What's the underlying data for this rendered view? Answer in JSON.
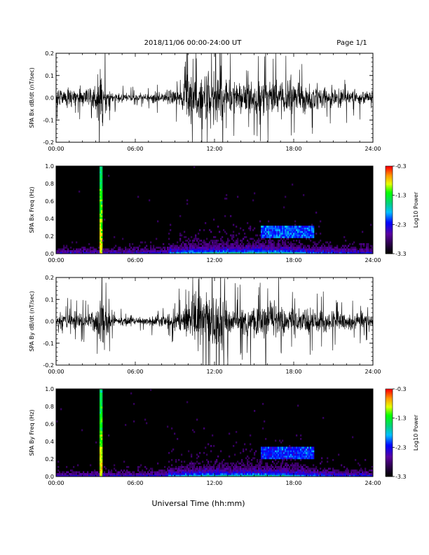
{
  "header": {
    "title": "2018/11/06  00:00-24:00 UT",
    "page": "Page 1/1"
  },
  "x_axis_title": "Universal Time (hh:mm)",
  "chart_data": [
    {
      "type": "line",
      "panel": "bx-timeseries",
      "ylabel": "SPA Bx dB/dt (nT/sec)",
      "xlim_hours": [
        0,
        24
      ],
      "ylim": [
        -0.2,
        0.2
      ],
      "x_tick_labels": [
        "00:00",
        "06:00",
        "12:00",
        "18:00",
        "24:00"
      ],
      "y_tick_labels": [
        "-0.2",
        "-0.1",
        "0.0",
        "0.1",
        "0.2"
      ],
      "y_tick_values": [
        -0.2,
        -0.1,
        0.0,
        0.1,
        0.2
      ],
      "series_color": "#000000",
      "envelope": {
        "hour": [
          0,
          1,
          2,
          3,
          3.3,
          3.5,
          4.2,
          5,
          6,
          7,
          8,
          9,
          9.5,
          10,
          11,
          12,
          12.7,
          13,
          14,
          15,
          16,
          17,
          18,
          19,
          20,
          21,
          22,
          23,
          24
        ],
        "amplitude": [
          0.06,
          0.08,
          0.06,
          0.09,
          0.22,
          0.22,
          0.05,
          0.035,
          0.03,
          0.035,
          0.045,
          0.06,
          0.09,
          0.2,
          0.22,
          0.22,
          0.22,
          0.12,
          0.12,
          0.14,
          0.15,
          0.14,
          0.12,
          0.1,
          0.09,
          0.08,
          0.07,
          0.06,
          0.05
        ]
      }
    },
    {
      "type": "heatmap",
      "panel": "bx-spectrogram",
      "ylabel": "SPA Bx Freq (Hz)",
      "xlim_hours": [
        0,
        24
      ],
      "ylim": [
        0.0,
        1.0
      ],
      "x_tick_labels": [
        "00:00",
        "06:00",
        "12:00",
        "18:00",
        "24:00"
      ],
      "y_tick_labels": [
        "0.0",
        "0.2",
        "0.4",
        "0.6",
        "0.8",
        "1.0"
      ],
      "y_tick_values": [
        0.0,
        0.2,
        0.4,
        0.6,
        0.8,
        1.0
      ],
      "colorbar": {
        "label": "Log10 Power",
        "range": [
          -3.3,
          -0.3
        ],
        "tick_labels": [
          "-0.3",
          "-1.3",
          "-2.3",
          "-3.3"
        ],
        "tick_values": [
          -0.3,
          -1.3,
          -2.3,
          -3.3
        ]
      },
      "features": [
        {
          "kind": "spike",
          "hour": 3.4,
          "freq_max": 1.0,
          "power": -0.8
        },
        {
          "kind": "band",
          "hour_range": [
            15.5,
            19.5
          ],
          "freq_range": [
            0.18,
            0.32
          ],
          "power": -2.1
        }
      ]
    },
    {
      "type": "line",
      "panel": "by-timeseries",
      "ylabel": "SPA By dB/dt (nT/sec)",
      "xlim_hours": [
        0,
        24
      ],
      "ylim": [
        -0.2,
        0.2
      ],
      "x_tick_labels": [
        "00:00",
        "06:00",
        "12:00",
        "18:00",
        "24:00"
      ],
      "y_tick_labels": [
        "-0.2",
        "-0.1",
        "0.0",
        "0.1",
        "0.2"
      ],
      "y_tick_values": [
        -0.2,
        -0.1,
        0.0,
        0.1,
        0.2
      ],
      "series_color": "#000000",
      "envelope": {
        "hour": [
          0,
          1,
          2,
          3,
          3.3,
          3.5,
          4.2,
          5,
          6,
          7,
          8,
          9,
          9.5,
          10,
          11,
          12,
          12.7,
          13,
          14,
          15,
          16,
          17,
          18,
          19,
          20,
          21,
          22,
          23,
          24
        ],
        "amplitude": [
          0.06,
          0.07,
          0.06,
          0.09,
          0.22,
          0.22,
          0.05,
          0.04,
          0.03,
          0.035,
          0.05,
          0.07,
          0.1,
          0.2,
          0.22,
          0.22,
          0.22,
          0.12,
          0.12,
          0.14,
          0.15,
          0.14,
          0.12,
          0.1,
          0.09,
          0.08,
          0.07,
          0.06,
          0.05
        ]
      }
    },
    {
      "type": "heatmap",
      "panel": "by-spectrogram",
      "ylabel": "SPA By Freq (Hz)",
      "xlim_hours": [
        0,
        24
      ],
      "ylim": [
        0.0,
        1.0
      ],
      "x_tick_labels": [
        "00:00",
        "06:00",
        "12:00",
        "18:00",
        "24:00"
      ],
      "y_tick_labels": [
        "0.0",
        "0.2",
        "0.4",
        "0.6",
        "0.8",
        "1.0"
      ],
      "y_tick_values": [
        0.0,
        0.2,
        0.4,
        0.6,
        0.8,
        1.0
      ],
      "colorbar": {
        "label": "Log10 Power",
        "range": [
          -3.3,
          -0.3
        ],
        "tick_labels": [
          "-0.3",
          "-1.3",
          "-2.3",
          "-3.3"
        ],
        "tick_values": [
          -0.3,
          -1.3,
          -2.3,
          -3.3
        ]
      },
      "features": [
        {
          "kind": "spike",
          "hour": 3.4,
          "freq_max": 1.0,
          "power": -0.8
        },
        {
          "kind": "band",
          "hour_range": [
            15.5,
            19.5
          ],
          "freq_range": [
            0.2,
            0.34
          ],
          "power": -2.2
        }
      ]
    }
  ]
}
